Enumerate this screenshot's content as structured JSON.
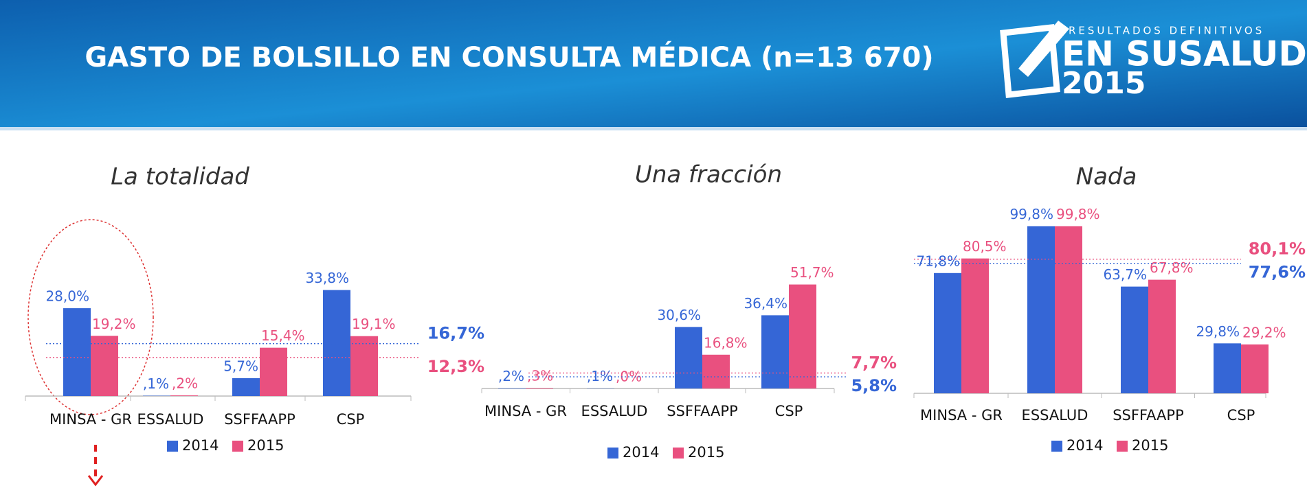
{
  "header": {
    "title": "GASTO DE BOLSILLO EN CONSULTA MÉDICA (n=13 670)",
    "logo": {
      "tagline": "RESULTADOS DEFINITIVOS",
      "name": "EN SUSALUD",
      "year": "2015"
    }
  },
  "chart_data": [
    {
      "type": "bar",
      "title": "La totalidad",
      "categories": [
        "MINSA - GR",
        "ESSALUD",
        "SSFFAAPP",
        "CSP"
      ],
      "series": [
        {
          "name": "2014",
          "color": "#3566d6",
          "values": [
            28.0,
            0.1,
            5.7,
            33.8
          ],
          "value_labels": [
            "28,0%",
            ",1%",
            "5,7%",
            "33,8%"
          ],
          "average": 16.7,
          "average_label": "16,7%"
        },
        {
          "name": "2015",
          "color": "#e9507f",
          "values": [
            19.2,
            0.2,
            15.4,
            19.1
          ],
          "value_labels": [
            "19,2%",
            ",2%",
            "15,4%",
            "19,1%"
          ],
          "average": 12.3,
          "average_label": "12,3%"
        }
      ]
    },
    {
      "type": "bar",
      "title": "Una fracción",
      "categories": [
        "MINSA - GR",
        "ESSALUD",
        "SSFFAAPP",
        "CSP"
      ],
      "series": [
        {
          "name": "2014",
          "color": "#3566d6",
          "values": [
            0.2,
            0.1,
            30.6,
            36.4
          ],
          "value_labels": [
            ",2%",
            ",1%",
            "30,6%",
            "36,4%"
          ],
          "average": 5.8,
          "average_label": "5,8%"
        },
        {
          "name": "2015",
          "color": "#e9507f",
          "values": [
            0.3,
            0.0,
            16.8,
            51.7
          ],
          "value_labels": [
            ",3%",
            ",0%",
            "16,8%",
            "51,7%"
          ],
          "average": 7.7,
          "average_label": "7,7%"
        }
      ]
    },
    {
      "type": "bar",
      "title": "Nada",
      "categories": [
        "MINSA - GR",
        "ESSALUD",
        "SSFFAAPP",
        "CSP"
      ],
      "series": [
        {
          "name": "2014",
          "color": "#3566d6",
          "values": [
            71.8,
            99.8,
            63.7,
            29.8
          ],
          "value_labels": [
            "71,8%",
            "99,8%",
            "63,7%",
            "29,8%"
          ],
          "average": 77.6,
          "average_label": "77,6%"
        },
        {
          "name": "2015",
          "color": "#e9507f",
          "values": [
            80.5,
            99.8,
            67.8,
            29.2
          ],
          "value_labels": [
            "80,5%",
            "99,8%",
            "67,8%",
            "29,2%"
          ],
          "average": 80.1,
          "average_label": "80,1%"
        }
      ]
    }
  ]
}
